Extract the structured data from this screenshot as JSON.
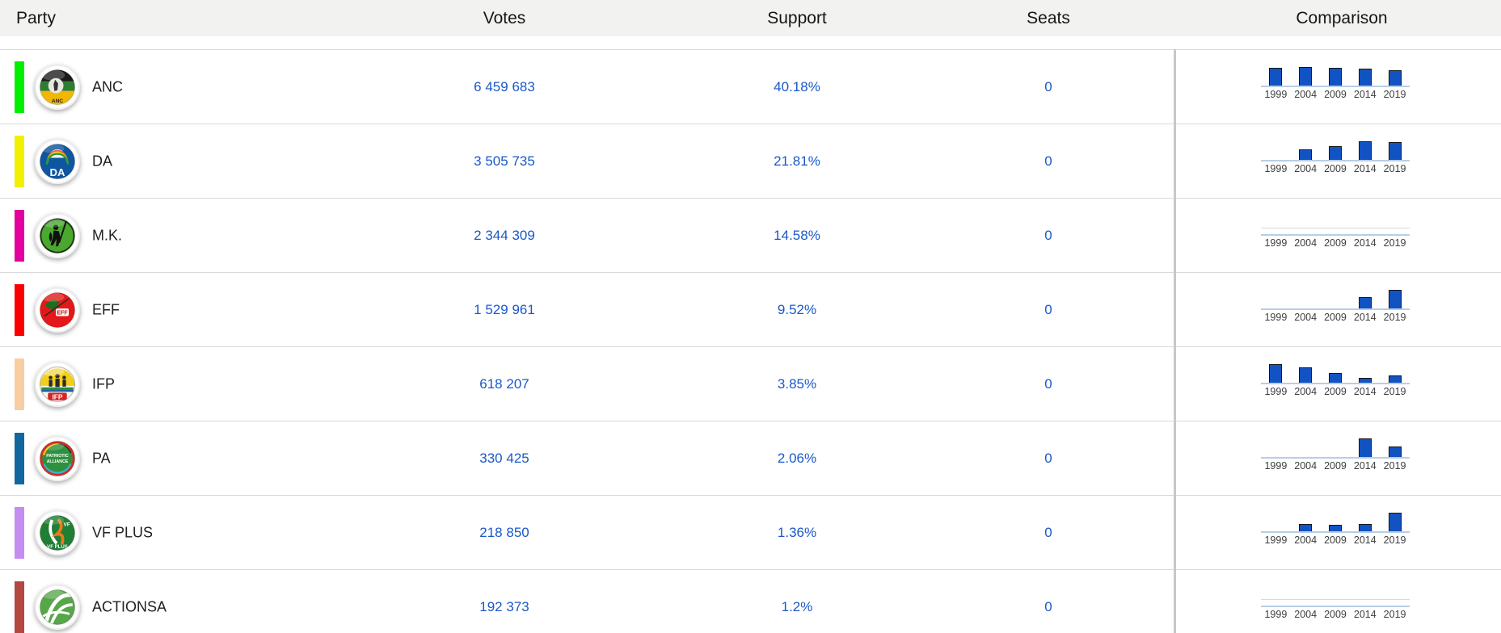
{
  "columns": {
    "party": "Party",
    "votes": "Votes",
    "support": "Support",
    "seats": "Seats",
    "comparison": "Comparison"
  },
  "comparison_chart": {
    "type": "bar",
    "years": [
      "1999",
      "2004",
      "2009",
      "2014",
      "2019"
    ],
    "note": "support percent per past election, bars normalized per party"
  },
  "colors": {
    "link_blue": "#1a58c8",
    "bar_fill": "#1253c4",
    "bar_border": "#161616",
    "baseline": "#b8cde6",
    "header_bg": "#f2f2f1",
    "row_border": "#d9d9d9",
    "column_divider": "#c8c8c8"
  },
  "parties": [
    {
      "name": "ANC",
      "votes": "6 459 683",
      "support": "40.18%",
      "seats": "0",
      "color": "#00ef00",
      "logo": "anc",
      "history": [
        66.4,
        69.7,
        65.9,
        62.2,
        57.5
      ]
    },
    {
      "name": "DA",
      "votes": "3 505 735",
      "support": "21.81%",
      "seats": "0",
      "color": "#f2ef00",
      "logo": "da",
      "history": [
        null,
        12.4,
        16.7,
        22.2,
        20.8
      ]
    },
    {
      "name": "M.K.",
      "votes": "2 344 309",
      "support": "14.58%",
      "seats": "0",
      "color": "#e2009e",
      "logo": "mk",
      "history": [
        null,
        null,
        null,
        null,
        null
      ]
    },
    {
      "name": "EFF",
      "votes": "1 529 961",
      "support": "9.52%",
      "seats": "0",
      "color": "#fa0000",
      "logo": "eff",
      "history": [
        null,
        null,
        null,
        6.4,
        10.8
      ]
    },
    {
      "name": "IFP",
      "votes": "618 207",
      "support": "3.85%",
      "seats": "0",
      "color": "#f8cda1",
      "logo": "ifp",
      "history": [
        8.6,
        7.0,
        4.6,
        2.4,
        3.4
      ]
    },
    {
      "name": "PA",
      "votes": "330 425",
      "support": "2.06%",
      "seats": "0",
      "color": "#11689e",
      "logo": "pa",
      "history": [
        null,
        null,
        null,
        0.07,
        0.04
      ]
    },
    {
      "name": "VF PLUS",
      "votes": "218 850",
      "support": "1.36%",
      "seats": "0",
      "color": "#c58cf2",
      "logo": "vf-plus",
      "history": [
        null,
        0.89,
        0.83,
        0.9,
        2.38
      ]
    },
    {
      "name": "ACTIONSA",
      "votes": "192 373",
      "support": "1.2%",
      "seats": "0",
      "color": "#b34840",
      "logo": "actionsa",
      "history": [
        null,
        null,
        null,
        null,
        null
      ]
    }
  ]
}
